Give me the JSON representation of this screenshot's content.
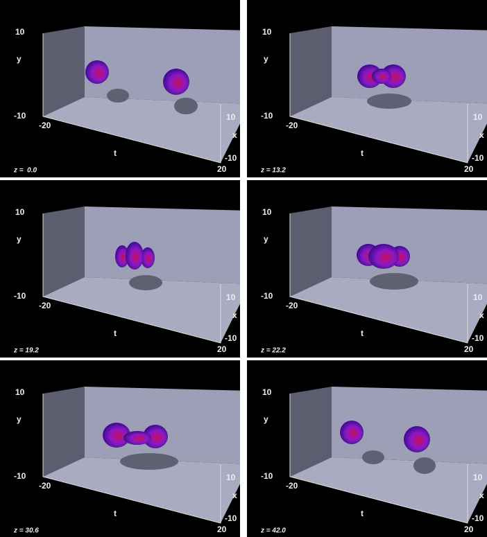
{
  "axes": {
    "y_max": "10",
    "y_label": "y",
    "y_min": "-10",
    "t_min": "-20",
    "t_label": "t",
    "t_max": "20",
    "x_max": "10",
    "x_label": "x",
    "x_min": "-10"
  },
  "panels": [
    {
      "label": "z =  0.0"
    },
    {
      "label": "z = 13.2"
    },
    {
      "label": "z = 19.2"
    },
    {
      "label": "z = 22.2"
    },
    {
      "label": "z = 30.6"
    },
    {
      "label": "z = 42.0"
    }
  ]
}
